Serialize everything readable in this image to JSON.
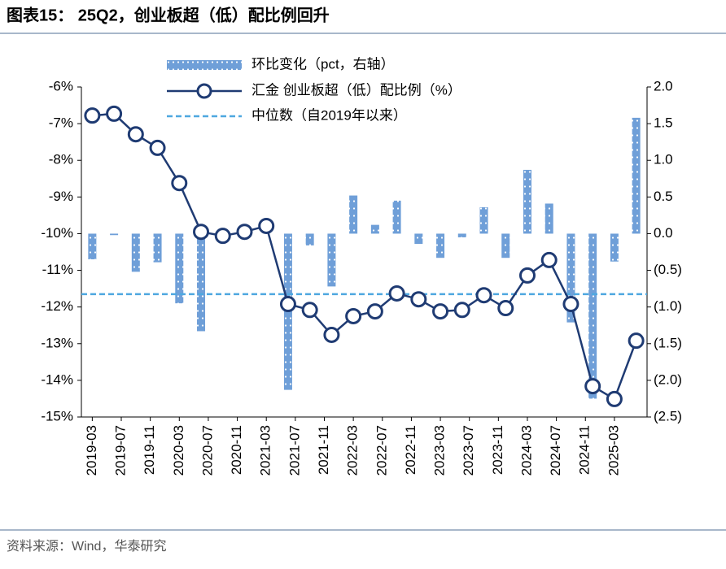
{
  "chart_data": {
    "type": "bar-line",
    "title": "图表15： 25Q2，创业板超（低）配比例回升",
    "source": "资料来源：Wind，华泰研究",
    "x": [
      "2019-03",
      "2019-06",
      "2019-09",
      "2019-12",
      "2020-03",
      "2020-06",
      "2020-09",
      "2020-12",
      "2021-03",
      "2021-06",
      "2021-09",
      "2021-12",
      "2022-03",
      "2022-06",
      "2022-09",
      "2022-12",
      "2023-03",
      "2023-06",
      "2023-09",
      "2023-12",
      "2024-03",
      "2024-06",
      "2024-09",
      "2024-12",
      "2025-03",
      "2025-06"
    ],
    "xticks": [
      "2019-03",
      "2019-07",
      "2019-11",
      "2020-03",
      "2020-07",
      "2020-11",
      "2021-03",
      "2021-07",
      "2021-11",
      "2022-03",
      "2022-07",
      "2022-11",
      "2023-03",
      "2023-07",
      "2023-11",
      "2024-03",
      "2024-07",
      "2024-11",
      "2025-03"
    ],
    "series": [
      {
        "name": "环比变化（pct，右轴）",
        "type": "bar",
        "axis": "y2",
        "color": "#6f9fd8",
        "values": [
          -0.35,
          -0.02,
          -0.52,
          -0.39,
          -0.95,
          -1.33,
          0,
          0,
          0,
          -2.13,
          -0.16,
          -0.72,
          0.52,
          0.12,
          0.45,
          -0.14,
          -0.33,
          -0.05,
          0.36,
          -0.33,
          0.87,
          0.41,
          -1.21,
          -2.25,
          -0.38,
          1.58
        ]
      },
      {
        "name": "汇金 创业板超（低）配比例（%）",
        "type": "line",
        "color": "#1f3b73",
        "values": [
          -6.78,
          -6.73,
          -7.29,
          -7.66,
          -8.62,
          -9.95,
          -10.06,
          -9.95,
          -9.79,
          -11.92,
          -12.08,
          -12.76,
          -12.25,
          -12.12,
          -11.63,
          -11.79,
          -12.12,
          -12.08,
          -11.68,
          -12.03,
          -11.14,
          -10.72,
          -11.92,
          -14.16,
          -14.51,
          -12.92
        ]
      }
    ],
    "median": {
      "name": "中位数（自2019年以来）",
      "value": -11.65,
      "color": "#4fa8e0"
    },
    "ylim": [
      -6,
      -15
    ],
    "yticks": [
      {
        "value": -6,
        "label": "-6%"
      },
      {
        "value": -7,
        "label": "-7%"
      },
      {
        "value": -8,
        "label": "-8%"
      },
      {
        "value": -9,
        "label": "-9%"
      },
      {
        "value": -10,
        "label": "-10%"
      },
      {
        "value": -11,
        "label": "-11%"
      },
      {
        "value": -12,
        "label": "-12%"
      },
      {
        "value": -13,
        "label": "-13%"
      },
      {
        "value": -14,
        "label": "-14%"
      },
      {
        "value": -15,
        "label": "-15%"
      }
    ],
    "y2lim": [
      2,
      -2.5
    ],
    "y2ticks": [
      {
        "value": 2,
        "label": "2.0"
      },
      {
        "value": 1.5,
        "label": "1.5"
      },
      {
        "value": 1,
        "label": "1.0"
      },
      {
        "value": 0.5,
        "label": "0.5"
      },
      {
        "value": 0,
        "label": "0.0"
      },
      {
        "value": -0.5,
        "label": "(0.5)"
      },
      {
        "value": -1,
        "label": "(1.0)"
      },
      {
        "value": -1.5,
        "label": "(1.5)"
      },
      {
        "value": -2,
        "label": "(2.0)"
      },
      {
        "value": -2.5,
        "label": "(2.5)"
      }
    ]
  }
}
